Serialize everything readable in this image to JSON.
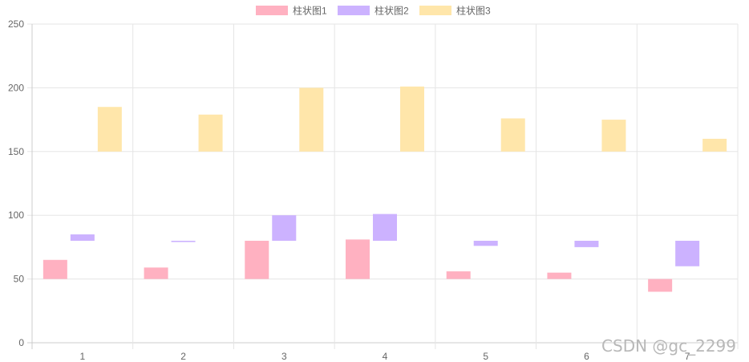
{
  "chart_data": {
    "type": "bar",
    "floating": true,
    "categories": [
      "1",
      "2",
      "3",
      "4",
      "5",
      "6",
      "7"
    ],
    "series": [
      {
        "name": "柱状图1",
        "color": "#ffb1c1",
        "ranges": [
          [
            50,
            65
          ],
          [
            50,
            59
          ],
          [
            50,
            80
          ],
          [
            50,
            81
          ],
          [
            50,
            56
          ],
          [
            50,
            55
          ],
          [
            40,
            50
          ]
        ]
      },
      {
        "name": "柱状图2",
        "color": "#ccb2ff",
        "ranges": [
          [
            80,
            85
          ],
          [
            79,
            80
          ],
          [
            80,
            100
          ],
          [
            80,
            101
          ],
          [
            76,
            80
          ],
          [
            75,
            80
          ],
          [
            60,
            80
          ]
        ]
      },
      {
        "name": "柱状图3",
        "color": "#ffe6aa",
        "ranges": [
          [
            150,
            185
          ],
          [
            150,
            179
          ],
          [
            150,
            200
          ],
          [
            150,
            201
          ],
          [
            150,
            176
          ],
          [
            150,
            175
          ],
          [
            150,
            160
          ]
        ]
      }
    ],
    "yticks": [
      "0",
      "50",
      "100",
      "150",
      "200",
      "250"
    ],
    "ylim": [
      0,
      250
    ],
    "grid": true,
    "legend_position": "top"
  },
  "watermark": "CSDN @gc_2299"
}
